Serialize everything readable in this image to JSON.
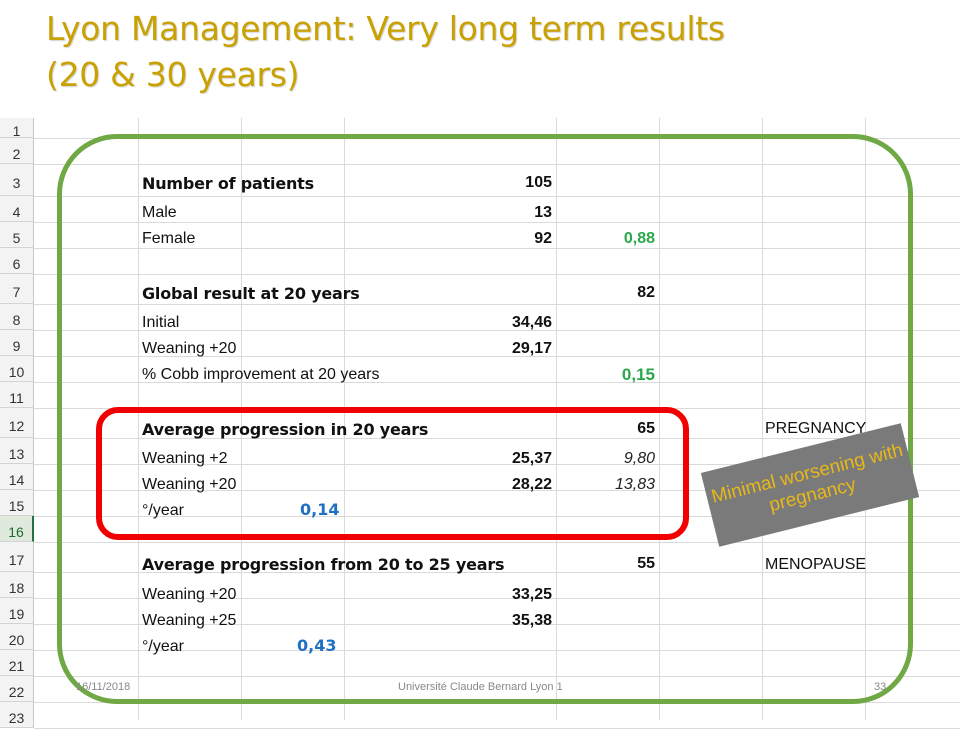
{
  "slide": {
    "title_line1": "Lyon Management: Very long term results",
    "title_line2": "(20 & 30 years)"
  },
  "sheet": {
    "row_numbers": [
      "1",
      "2",
      "3",
      "4",
      "5",
      "6",
      "7",
      "8",
      "9",
      "10",
      "11",
      "12",
      "13",
      "14",
      "15",
      "16",
      "17",
      "18",
      "19",
      "20",
      "21",
      "22",
      "23"
    ],
    "selected_row": "16",
    "rows": {
      "r3": {
        "label": "Number of patients",
        "value": "105"
      },
      "r4": {
        "label": "Male",
        "value": "13"
      },
      "r5": {
        "label": "Female",
        "value": "92",
        "extra": "0,88"
      },
      "r7": {
        "label": "Global result at 20 years",
        "extra": "82"
      },
      "r8": {
        "label": "Initial",
        "value": "34,46"
      },
      "r9": {
        "label": "Weaning +20",
        "value": "29,17"
      },
      "r10": {
        "label": "% Cobb improvement at 20 years",
        "extra": "0,15"
      },
      "r12": {
        "label": "Average progression in 20 years",
        "extra": "65",
        "note": "PREGNANCY"
      },
      "r13": {
        "label": "Weaning +2",
        "value": "25,37",
        "extra": "9,80"
      },
      "r14": {
        "label": "Weaning +20",
        "value": "28,22",
        "extra": "13,83"
      },
      "r15": {
        "label": "°/year",
        "rate": "0,14"
      },
      "r17": {
        "label": "Average progression from 20 to 25 years",
        "extra": "55",
        "note": "MENOPAUSE"
      },
      "r18": {
        "label": "Weaning +20",
        "value": "33,25"
      },
      "r19": {
        "label": "Weaning +25",
        "value": "35,38"
      },
      "r20": {
        "label": "°/year",
        "rate": "0,43"
      }
    }
  },
  "callout": {
    "text": "Minimal worsening with pregnancy"
  },
  "footer": {
    "date": "16/11/2018",
    "institution": "Université Claude Bernard Lyon 1",
    "page": "33"
  },
  "colors": {
    "title": "#c9a100",
    "green_outline": "#6fa844",
    "red_outline": "#f00000",
    "green_value": "#2aa84a",
    "blue_value": "#1f6fc5",
    "callout_bg": "#7a7a7a",
    "callout_text": "#e8b818"
  }
}
